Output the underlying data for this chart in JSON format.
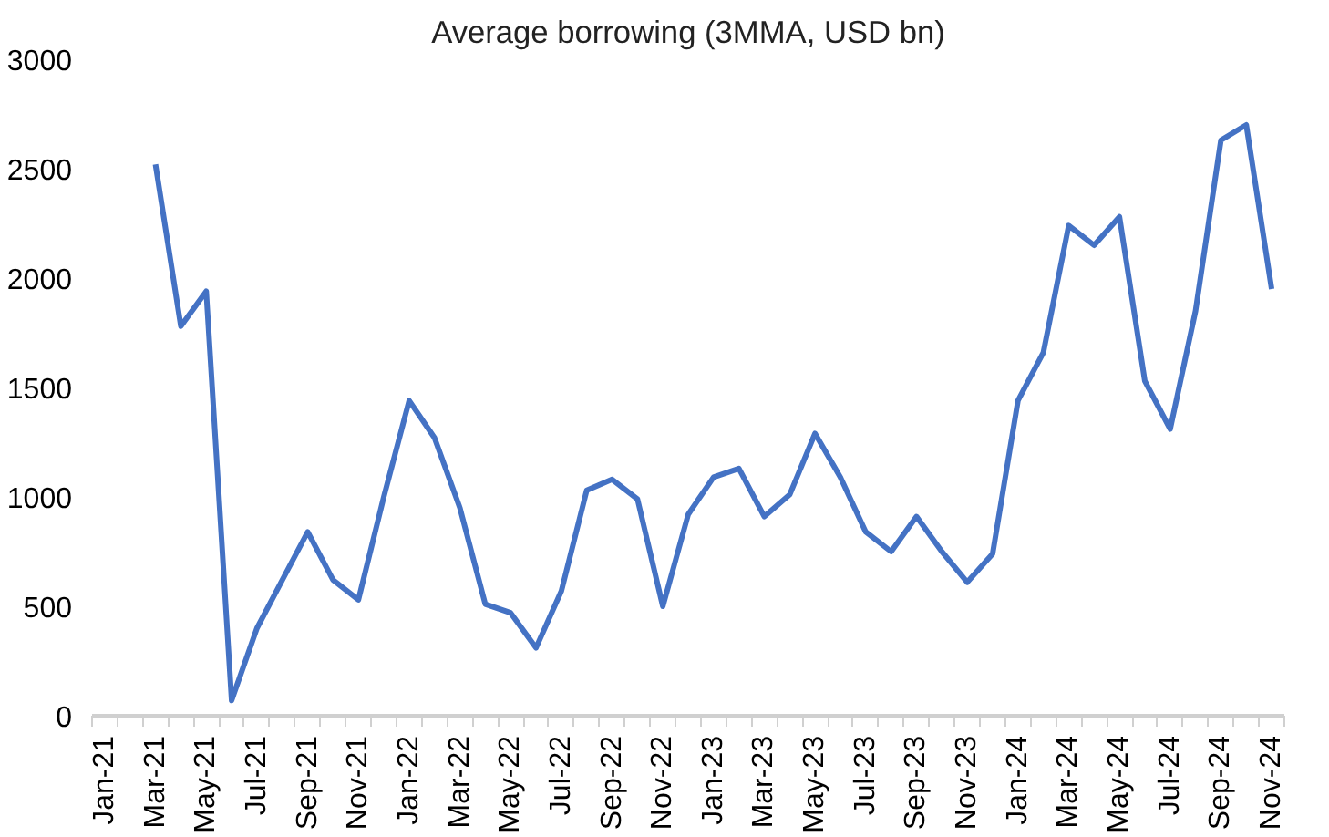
{
  "chart_data": {
    "type": "line",
    "title": "Average borrowing (3MMA, USD bn)",
    "categories": [
      "Jan-21",
      null,
      "Mar-21",
      null,
      "May-21",
      null,
      "Jul-21",
      null,
      "Sep-21",
      null,
      "Nov-21",
      null,
      "Jan-22",
      null,
      "Mar-22",
      null,
      "May-22",
      null,
      "Jul-22",
      null,
      "Sep-22",
      null,
      "Nov-22",
      null,
      "Jan-23",
      null,
      "Mar-23",
      null,
      "May-23",
      null,
      "Jul-23",
      null,
      "Sep-23",
      null,
      "Nov-23",
      null,
      "Jan-24",
      null,
      "Mar-24",
      null,
      "May-24",
      null,
      "Jul-24",
      null,
      "Sep-24",
      null,
      "Nov-24"
    ],
    "series": [
      {
        "color": "#4472c4",
        "values": [
          null,
          null,
          2520,
          1780,
          1940,
          70,
          400,
          620,
          840,
          620,
          530,
          1000,
          1440,
          1270,
          950,
          510,
          470,
          310,
          570,
          1030,
          1080,
          990,
          500,
          920,
          1090,
          1130,
          910,
          1010,
          1290,
          1090,
          840,
          750,
          910,
          750,
          610,
          740,
          1440,
          1660,
          2240,
          2150,
          2280,
          1530,
          1310,
          1850,
          2630,
          2700,
          1950
        ]
      }
    ],
    "ylim": [
      0,
      3000
    ],
    "yticks": [
      0,
      500,
      1000,
      1500,
      2000,
      2500,
      3000
    ],
    "grid": false,
    "marker": "none",
    "line_style": "solid"
  }
}
